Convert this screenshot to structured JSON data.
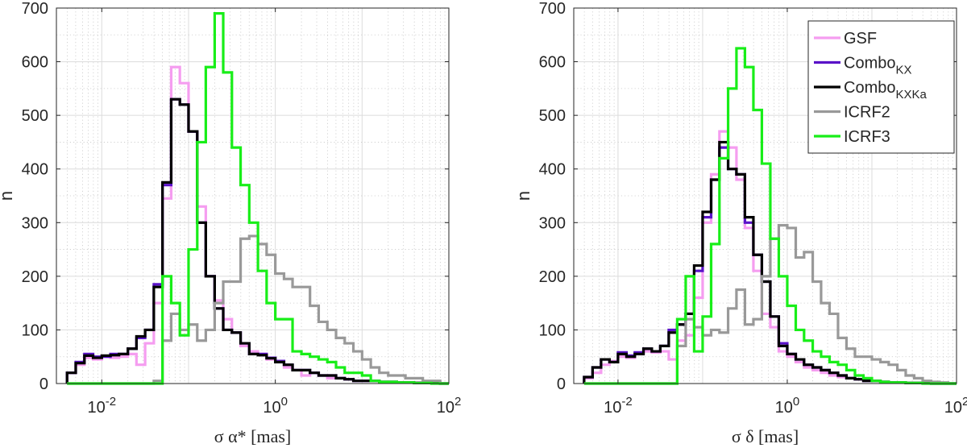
{
  "chart_data": [
    {
      "type": "histogram",
      "title": "",
      "xlabel": "σ α* [mas]",
      "ylabel": "n",
      "xscale": "log",
      "xlim": [
        0.003,
        100
      ],
      "ylim": [
        0,
        700
      ],
      "xticks": [
        {
          "value": 0.01,
          "base": "10",
          "exp": "-2"
        },
        {
          "value": 1,
          "base": "10",
          "exp": "0"
        },
        {
          "value": 100,
          "base": "10",
          "exp": "2"
        }
      ],
      "yticks": [
        0,
        100,
        200,
        300,
        400,
        500,
        600,
        700
      ],
      "grid": "major and minor",
      "bin_edges": [
        0.00398,
        0.00501,
        0.00631,
        0.00794,
        0.01,
        0.0126,
        0.0158,
        0.02,
        0.0251,
        0.0316,
        0.0398,
        0.0501,
        0.0631,
        0.0794,
        0.1,
        0.126,
        0.158,
        0.2,
        0.251,
        0.316,
        0.398,
        0.501,
        0.631,
        0.794,
        1,
        1.26,
        1.58,
        2,
        2.51,
        3.16,
        3.98,
        5.01,
        6.31,
        7.94,
        10,
        12.6,
        15.8,
        20,
        25.1,
        31.6,
        39.8,
        50.1,
        63.1,
        79.4,
        100
      ],
      "series": [
        {
          "name": "GSF",
          "color": "#f59df0",
          "values": [
            20,
            35,
            48,
            45,
            50,
            48,
            50,
            55,
            35,
            75,
            150,
            345,
            590,
            560,
            470,
            330,
            200,
            155,
            120,
            95,
            70,
            60,
            55,
            45,
            40,
            30,
            25,
            15,
            20,
            15,
            10,
            10,
            8,
            5,
            5,
            5,
            3,
            3,
            2,
            2,
            2,
            1,
            1,
            0
          ]
        },
        {
          "name": "Combo_KX",
          "color": "#5a12c8",
          "values": [
            20,
            40,
            55,
            50,
            50,
            55,
            55,
            65,
            85,
            100,
            185,
            370,
            530,
            520,
            470,
            300,
            200,
            140,
            100,
            95,
            75,
            55,
            55,
            48,
            42,
            35,
            25,
            25,
            20,
            15,
            15,
            10,
            8,
            5,
            5,
            5,
            3,
            3,
            2,
            2,
            1,
            1,
            1,
            0
          ]
        },
        {
          "name": "Combo_KXKa",
          "color": "#000000",
          "values": [
            20,
            38,
            52,
            48,
            52,
            53,
            55,
            65,
            88,
            100,
            180,
            375,
            530,
            520,
            470,
            300,
            200,
            140,
            100,
            95,
            75,
            55,
            53,
            47,
            40,
            35,
            25,
            25,
            20,
            15,
            15,
            10,
            8,
            5,
            5,
            5,
            3,
            3,
            2,
            2,
            1,
            1,
            1,
            0
          ]
        },
        {
          "name": "ICRF2",
          "color": "#999999",
          "values": [
            0,
            0,
            0,
            0,
            0,
            0,
            0,
            0,
            0,
            0,
            5,
            80,
            130,
            100,
            110,
            80,
            100,
            150,
            190,
            190,
            270,
            275,
            260,
            240,
            205,
            195,
            180,
            180,
            145,
            115,
            100,
            85,
            75,
            60,
            45,
            30,
            20,
            15,
            15,
            10,
            10,
            5,
            5,
            0
          ]
        },
        {
          "name": "ICRF3",
          "color": "#18ee18",
          "values": [
            0,
            0,
            0,
            0,
            0,
            0,
            0,
            0,
            0,
            0,
            0,
            200,
            150,
            90,
            250,
            450,
            590,
            690,
            580,
            440,
            370,
            300,
            210,
            150,
            120,
            120,
            60,
            55,
            50,
            45,
            40,
            30,
            20,
            20,
            15,
            5,
            3,
            3,
            2,
            2,
            1,
            1,
            0,
            0
          ]
        }
      ]
    },
    {
      "type": "histogram",
      "title": "",
      "xlabel": "σ δ [mas]",
      "ylabel": "n",
      "xscale": "log",
      "xlim": [
        0.003,
        100
      ],
      "ylim": [
        0,
        700
      ],
      "xticks": [
        {
          "value": 0.01,
          "base": "10",
          "exp": "-2"
        },
        {
          "value": 1,
          "base": "10",
          "exp": "0"
        },
        {
          "value": 100,
          "base": "10",
          "exp": "2"
        }
      ],
      "yticks": [
        0,
        100,
        200,
        300,
        400,
        500,
        600,
        700
      ],
      "grid": "major and minor",
      "legend_position": "top-right",
      "bin_edges": [
        0.00398,
        0.00501,
        0.00631,
        0.00794,
        0.01,
        0.0126,
        0.0158,
        0.02,
        0.0251,
        0.0316,
        0.0398,
        0.0501,
        0.0631,
        0.0794,
        0.1,
        0.126,
        0.158,
        0.2,
        0.251,
        0.316,
        0.398,
        0.501,
        0.631,
        0.794,
        1,
        1.26,
        1.58,
        2,
        2.51,
        3.16,
        3.98,
        5.01,
        6.31,
        7.94,
        10,
        12.6,
        15.8,
        20,
        25.1,
        31.6,
        39.8,
        50.1,
        63.1,
        79.4,
        100
      ],
      "series": [
        {
          "name": "GSF",
          "color": "#f59df0",
          "values": [
            10,
            20,
            35,
            42,
            50,
            48,
            55,
            60,
            58,
            60,
            45,
            80,
            90,
            160,
            300,
            390,
            470,
            440,
            380,
            290,
            210,
            130,
            105,
            60,
            50,
            40,
            30,
            25,
            20,
            15,
            12,
            10,
            8,
            5,
            5,
            3,
            2,
            2,
            1,
            1,
            1,
            0,
            0,
            0
          ]
        },
        {
          "name": "Combo_KX",
          "color": "#5a12c8",
          "values": [
            12,
            30,
            45,
            40,
            58,
            52,
            58,
            65,
            60,
            70,
            100,
            110,
            130,
            210,
            310,
            380,
            440,
            400,
            390,
            300,
            240,
            190,
            125,
            75,
            55,
            45,
            35,
            30,
            25,
            20,
            15,
            10,
            8,
            5,
            5,
            3,
            2,
            2,
            1,
            1,
            1,
            0,
            0,
            0
          ]
        },
        {
          "name": "Combo_KXKa",
          "color": "#000000",
          "values": [
            12,
            30,
            45,
            40,
            55,
            50,
            55,
            65,
            60,
            70,
            95,
            110,
            130,
            220,
            320,
            380,
            450,
            400,
            390,
            310,
            240,
            190,
            125,
            70,
            55,
            45,
            35,
            30,
            25,
            20,
            15,
            10,
            8,
            5,
            5,
            3,
            2,
            2,
            1,
            1,
            1,
            0,
            0,
            0
          ]
        },
        {
          "name": "ICRF2",
          "color": "#999999",
          "values": [
            0,
            0,
            0,
            0,
            0,
            0,
            0,
            0,
            0,
            0,
            0,
            70,
            120,
            105,
            90,
            100,
            95,
            140,
            175,
            110,
            120,
            200,
            270,
            295,
            290,
            235,
            245,
            190,
            150,
            130,
            85,
            65,
            50,
            50,
            45,
            40,
            35,
            25,
            15,
            10,
            5,
            3,
            2,
            0
          ]
        },
        {
          "name": "ICRF3",
          "color": "#18ee18",
          "values": [
            0,
            0,
            0,
            0,
            0,
            0,
            0,
            0,
            0,
            0,
            0,
            120,
            200,
            60,
            125,
            260,
            420,
            550,
            625,
            590,
            510,
            410,
            270,
            200,
            145,
            100,
            80,
            60,
            50,
            40,
            35,
            25,
            15,
            10,
            5,
            3,
            2,
            2,
            1,
            1,
            0,
            0,
            0,
            0
          ]
        }
      ]
    }
  ],
  "legend": [
    {
      "base": "GSF",
      "sub": "",
      "color": "#f59df0"
    },
    {
      "base": "Combo",
      "sub": "KX",
      "color": "#5a12c8"
    },
    {
      "base": "Combo",
      "sub": "KXKa",
      "color": "#000000"
    },
    {
      "base": "ICRF2",
      "sub": "",
      "color": "#999999"
    },
    {
      "base": "ICRF3",
      "sub": "",
      "color": "#18ee18"
    }
  ]
}
